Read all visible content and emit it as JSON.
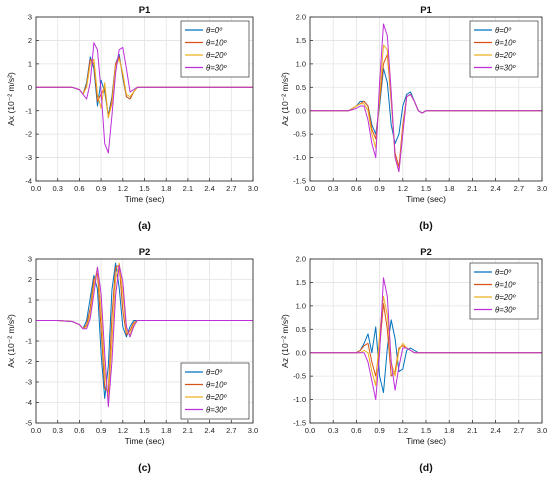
{
  "figure": {
    "captions": [
      "(a)",
      "(b)",
      "(c)",
      "(d)"
    ]
  },
  "series_colors": [
    "#0072BD",
    "#D95319",
    "#EDB120",
    "#BD2ED9"
  ],
  "legend_labels": [
    "θ=0º",
    "θ=10º",
    "θ=20º",
    "θ=30º"
  ],
  "chart_data": [
    {
      "type": "line",
      "title": "P1",
      "xlabel": "Time (sec)",
      "ylabel": "Ax (10⁻² m/s²)",
      "xlim": [
        0,
        3
      ],
      "ylim": [
        -4,
        3
      ],
      "xticks": [
        "0.0",
        "0.3",
        "0.6",
        "0.9",
        "1.2",
        "1.5",
        "1.8",
        "2.1",
        "2.4",
        "2.7",
        "3.0"
      ],
      "yticks": [
        "-4",
        "-3",
        "-2",
        "-1",
        "0",
        "1",
        "2",
        "3"
      ],
      "grid": true,
      "legend_position": "top-right",
      "x": [
        0,
        0.3,
        0.5,
        0.6,
        0.65,
        0.7,
        0.75,
        0.8,
        0.85,
        0.9,
        0.95,
        1.0,
        1.05,
        1.1,
        1.15,
        1.2,
        1.25,
        1.3,
        1.35,
        1.4,
        1.45,
        1.5,
        1.6,
        1.8,
        2.1,
        2.4,
        2.7,
        3.0
      ],
      "series": [
        {
          "name": "θ=0º",
          "values": [
            0,
            0,
            0,
            -0.1,
            -0.3,
            0.2,
            1.3,
            0.8,
            -0.8,
            0.3,
            -0.2,
            -1.2,
            -0.4,
            1.0,
            1.4,
            0.4,
            -0.4,
            -0.5,
            -0.2,
            0,
            0,
            0,
            0,
            0,
            0,
            0,
            0,
            0
          ]
        },
        {
          "name": "θ=10º",
          "values": [
            0,
            0,
            0,
            -0.1,
            -0.3,
            0.1,
            1.2,
            1.0,
            -0.6,
            -0.3,
            0.0,
            -1.3,
            -0.5,
            1.0,
            1.3,
            0.5,
            -0.4,
            -0.5,
            -0.2,
            0,
            0,
            0,
            0,
            0,
            0,
            0,
            0,
            0
          ]
        },
        {
          "name": "θ=20º",
          "values": [
            0,
            0,
            0,
            -0.1,
            -0.3,
            0.0,
            1.0,
            1.2,
            -0.3,
            -0.9,
            0.2,
            -1.3,
            -0.7,
            0.9,
            1.2,
            0.6,
            -0.3,
            -0.4,
            -0.2,
            0,
            0,
            0,
            0,
            0,
            0,
            0,
            0,
            0
          ]
        },
        {
          "name": "θ=30º",
          "values": [
            0,
            0,
            0,
            -0.1,
            -0.3,
            -0.5,
            0.2,
            1.9,
            1.6,
            -0.2,
            -2.4,
            -2.8,
            -1.2,
            0.6,
            1.6,
            1.7,
            0.8,
            -0.2,
            -0.1,
            0,
            0,
            0,
            0,
            0,
            0,
            0,
            0,
            0
          ]
        }
      ]
    },
    {
      "type": "line",
      "title": "P1",
      "xlabel": "Time (sec)",
      "ylabel": "Az (10⁻² m/s²)",
      "xlim": [
        0,
        3
      ],
      "ylim": [
        -1.5,
        2.0
      ],
      "xticks": [
        "0.0",
        "0.3",
        "0.6",
        "0.9",
        "1.2",
        "1.5",
        "1.8",
        "2.1",
        "2.4",
        "2.7",
        "3.0"
      ],
      "yticks": [
        "-1.5",
        "-1.0",
        "-0.5",
        "0.0",
        "0.5",
        "1.0",
        "1.5",
        "2.0"
      ],
      "grid": true,
      "legend_position": "top-right",
      "x": [
        0,
        0.3,
        0.5,
        0.6,
        0.65,
        0.7,
        0.75,
        0.8,
        0.85,
        0.9,
        0.95,
        1.0,
        1.05,
        1.1,
        1.15,
        1.2,
        1.25,
        1.3,
        1.35,
        1.4,
        1.45,
        1.5,
        1.6,
        1.8,
        2.1,
        2.4,
        2.7,
        3.0
      ],
      "series": [
        {
          "name": "θ=0º",
          "values": [
            0,
            0,
            0,
            0.1,
            0.2,
            0.2,
            0.1,
            -0.3,
            -0.5,
            0.1,
            0.9,
            0.6,
            -0.3,
            -0.7,
            -0.5,
            0.1,
            0.35,
            0.4,
            0.2,
            0,
            -0.05,
            0,
            0,
            0,
            0,
            0,
            0,
            0
          ]
        },
        {
          "name": "θ=10º",
          "values": [
            0,
            0,
            0,
            0.1,
            0.15,
            0.2,
            0.1,
            -0.4,
            -0.6,
            0.2,
            1.0,
            1.2,
            0.2,
            -0.9,
            -1.2,
            -0.3,
            0.3,
            0.35,
            0.2,
            0,
            -0.05,
            0,
            0,
            0,
            0,
            0,
            0,
            0
          ]
        },
        {
          "name": "θ=20º",
          "values": [
            0,
            0,
            0,
            0.1,
            0.15,
            0.15,
            0.0,
            -0.5,
            -0.8,
            0.3,
            1.4,
            1.3,
            0.3,
            -1.0,
            -1.3,
            -0.4,
            0.3,
            0.35,
            0.2,
            0,
            -0.05,
            0,
            0,
            0,
            0,
            0,
            0,
            0
          ]
        },
        {
          "name": "θ=30º",
          "values": [
            0,
            0,
            0,
            0.05,
            0.1,
            0.1,
            -0.2,
            -0.7,
            -1.0,
            0.6,
            1.85,
            1.6,
            0.4,
            -1.0,
            -1.3,
            -0.5,
            0.3,
            0.35,
            0.2,
            0,
            -0.05,
            0,
            0,
            0,
            0,
            0,
            0,
            0
          ]
        }
      ]
    },
    {
      "type": "line",
      "title": "P2",
      "xlabel": "Time (sec)",
      "ylabel": "Ax (10⁻² m/s²)",
      "xlim": [
        0,
        3
      ],
      "ylim": [
        -5,
        3
      ],
      "xticks": [
        "0.0",
        "0.3",
        "0.6",
        "0.9",
        "1.2",
        "1.5",
        "1.8",
        "2.1",
        "2.4",
        "2.7",
        "3.0"
      ],
      "yticks": [
        "-5",
        "-4",
        "-3",
        "-2",
        "-1",
        "0",
        "1",
        "2",
        "3"
      ],
      "grid": true,
      "legend_position": "bottom-right",
      "x": [
        0,
        0.3,
        0.5,
        0.6,
        0.65,
        0.7,
        0.75,
        0.8,
        0.85,
        0.9,
        0.95,
        1.0,
        1.05,
        1.1,
        1.15,
        1.2,
        1.25,
        1.3,
        1.35,
        1.4,
        1.45,
        1.5,
        1.6,
        1.8,
        2.1,
        2.4,
        2.7,
        3.0
      ],
      "series": [
        {
          "name": "θ=0º",
          "values": [
            0,
            0,
            -0.05,
            -0.2,
            -0.4,
            0.0,
            1.1,
            2.2,
            1.5,
            -1.6,
            -3.8,
            -2.2,
            1.5,
            2.8,
            1.6,
            -0.3,
            -0.8,
            -0.3,
            0,
            0,
            0,
            0,
            0,
            0,
            0,
            0,
            0,
            0
          ]
        },
        {
          "name": "θ=10º",
          "values": [
            0,
            0,
            -0.05,
            -0.2,
            -0.4,
            -0.2,
            0.6,
            2.0,
            2.3,
            -0.4,
            -3.3,
            -3.5,
            0.2,
            2.6,
            2.7,
            0.5,
            -0.7,
            -0.5,
            -0.1,
            0,
            0,
            0,
            0,
            0,
            0,
            0,
            0,
            0
          ]
        },
        {
          "name": "θ=20º",
          "values": [
            0,
            0,
            -0.05,
            -0.2,
            -0.4,
            -0.3,
            0.3,
            1.7,
            2.6,
            0.5,
            -2.5,
            -3.9,
            -1.0,
            2.0,
            2.8,
            1.3,
            -0.5,
            -0.7,
            -0.2,
            0,
            0,
            0,
            0,
            0,
            0,
            0,
            0,
            0
          ]
        },
        {
          "name": "θ=30º",
          "values": [
            0,
            0,
            -0.05,
            -0.2,
            -0.4,
            -0.4,
            0.1,
            1.3,
            2.6,
            1.3,
            -1.6,
            -4.2,
            -2.0,
            1.2,
            2.7,
            1.9,
            -0.3,
            -0.8,
            -0.3,
            0,
            0,
            0,
            0,
            0,
            0,
            0,
            0,
            0
          ]
        }
      ]
    },
    {
      "type": "line",
      "title": "P2",
      "xlabel": "Time (sec)",
      "ylabel": "Az (10⁻² m/s²)",
      "xlim": [
        0,
        3
      ],
      "ylim": [
        -1.5,
        2.0
      ],
      "xticks": [
        "0.0",
        "0.3",
        "0.6",
        "0.9",
        "1.2",
        "1.5",
        "1.8",
        "2.1",
        "2.4",
        "2.7",
        "3.0"
      ],
      "yticks": [
        "-1.5",
        "-1.0",
        "-0.5",
        "0.0",
        "0.5",
        "1.0",
        "1.5",
        "2.0"
      ],
      "grid": true,
      "legend_position": "top-right",
      "x": [
        0,
        0.3,
        0.5,
        0.6,
        0.65,
        0.7,
        0.75,
        0.8,
        0.85,
        0.9,
        0.95,
        1.0,
        1.05,
        1.1,
        1.15,
        1.2,
        1.25,
        1.3,
        1.35,
        1.4,
        1.45,
        1.5,
        1.6,
        1.8,
        2.1,
        2.4,
        2.7,
        3.0
      ],
      "series": [
        {
          "name": "θ=0º",
          "values": [
            0,
            0,
            0,
            0.0,
            0.05,
            0.2,
            0.4,
            0.0,
            0.55,
            -0.5,
            -0.85,
            0.1,
            0.7,
            0.3,
            -0.4,
            -0.35,
            0.05,
            0.1,
            0.05,
            0,
            0,
            0,
            0,
            0,
            0,
            0,
            0,
            0
          ]
        },
        {
          "name": "θ=10º",
          "values": [
            0,
            0,
            0,
            0.0,
            0.05,
            0.15,
            0.2,
            -0.2,
            -0.5,
            0.1,
            1.05,
            0.5,
            -0.5,
            -0.4,
            0.1,
            0.15,
            0.1,
            0.05,
            0,
            0,
            0,
            0,
            0,
            0,
            0,
            0,
            0,
            0
          ]
        },
        {
          "name": "θ=20º",
          "values": [
            0,
            0,
            0,
            0.0,
            0.0,
            0.05,
            0.0,
            -0.4,
            -0.7,
            0.4,
            1.2,
            0.8,
            -0.2,
            -0.5,
            0.05,
            0.2,
            0.1,
            0.05,
            0,
            0,
            0,
            0,
            0,
            0,
            0,
            0,
            0,
            0
          ]
        },
        {
          "name": "θ=30º",
          "values": [
            0,
            0,
            0,
            0.0,
            0.0,
            0.0,
            -0.2,
            -0.6,
            -1.0,
            0.0,
            1.6,
            1.2,
            -0.2,
            -0.8,
            -0.3,
            0.1,
            0.1,
            0.05,
            0,
            0,
            0,
            0,
            0,
            0,
            0,
            0,
            0,
            0
          ]
        }
      ]
    }
  ]
}
